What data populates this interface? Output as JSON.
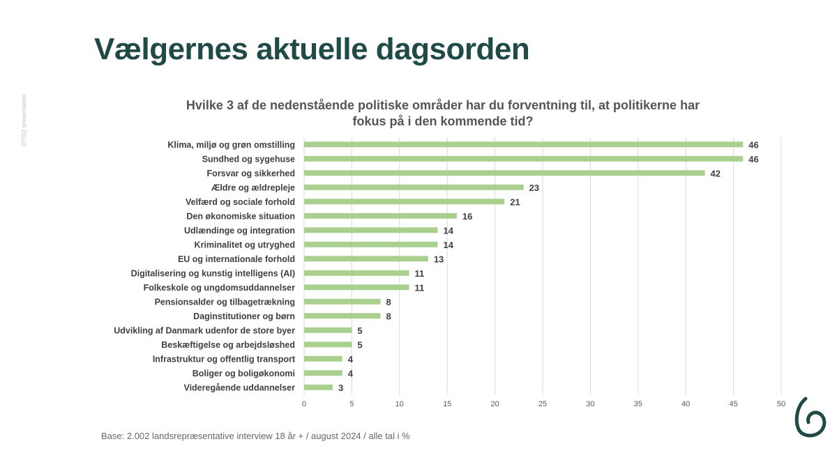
{
  "side_label": "OTOO presentation",
  "page_title": "Vælgernes aktuelle dagsorden",
  "footnote": "Base: 2.002 landsrepræsentative interview 18 år + / august 2024 / alle tal i %",
  "colors": {
    "bar": "#a9d08e",
    "title": "#1f4a45",
    "text": "#404040",
    "grid": "#d9d9d9"
  },
  "chart_data": {
    "type": "bar",
    "orientation": "horizontal",
    "title_lines": [
      "Hvilke 3 af de nedenstående politiske områder har du forventning til, at politikerne har",
      "fokus på i den kommende tid?"
    ],
    "categories": [
      "Klima, miljø og grøn omstilling",
      "Sundhed og sygehuse",
      "Forsvar og sikkerhed",
      "Ældre og ældrepleje",
      "Velfærd og sociale forhold",
      "Den økonomiske situation",
      "Udlændinge og integration",
      "Kriminalitet og utryghed",
      "EU og internationale forhold",
      "Digitalisering og kunstig intelligens (AI)",
      "Folkeskole og ungdomsuddannelser",
      "Pensionsalder og tilbagetrækning",
      "Daginstitutioner og børn",
      "Udvikling af Danmark udenfor de store byer",
      "Beskæftigelse og arbejdsløshed",
      "Infrastruktur og offentlig transport",
      "Boliger og boligøkonomi",
      "Videregående uddannelser"
    ],
    "values": [
      46,
      46,
      42,
      23,
      21,
      16,
      14,
      14,
      13,
      11,
      11,
      8,
      8,
      5,
      5,
      4,
      4,
      3
    ],
    "xlim": [
      0,
      50
    ],
    "xticks": [
      0,
      5,
      10,
      15,
      20,
      25,
      30,
      35,
      40,
      45,
      50
    ],
    "grid": true,
    "data_labels": true
  }
}
